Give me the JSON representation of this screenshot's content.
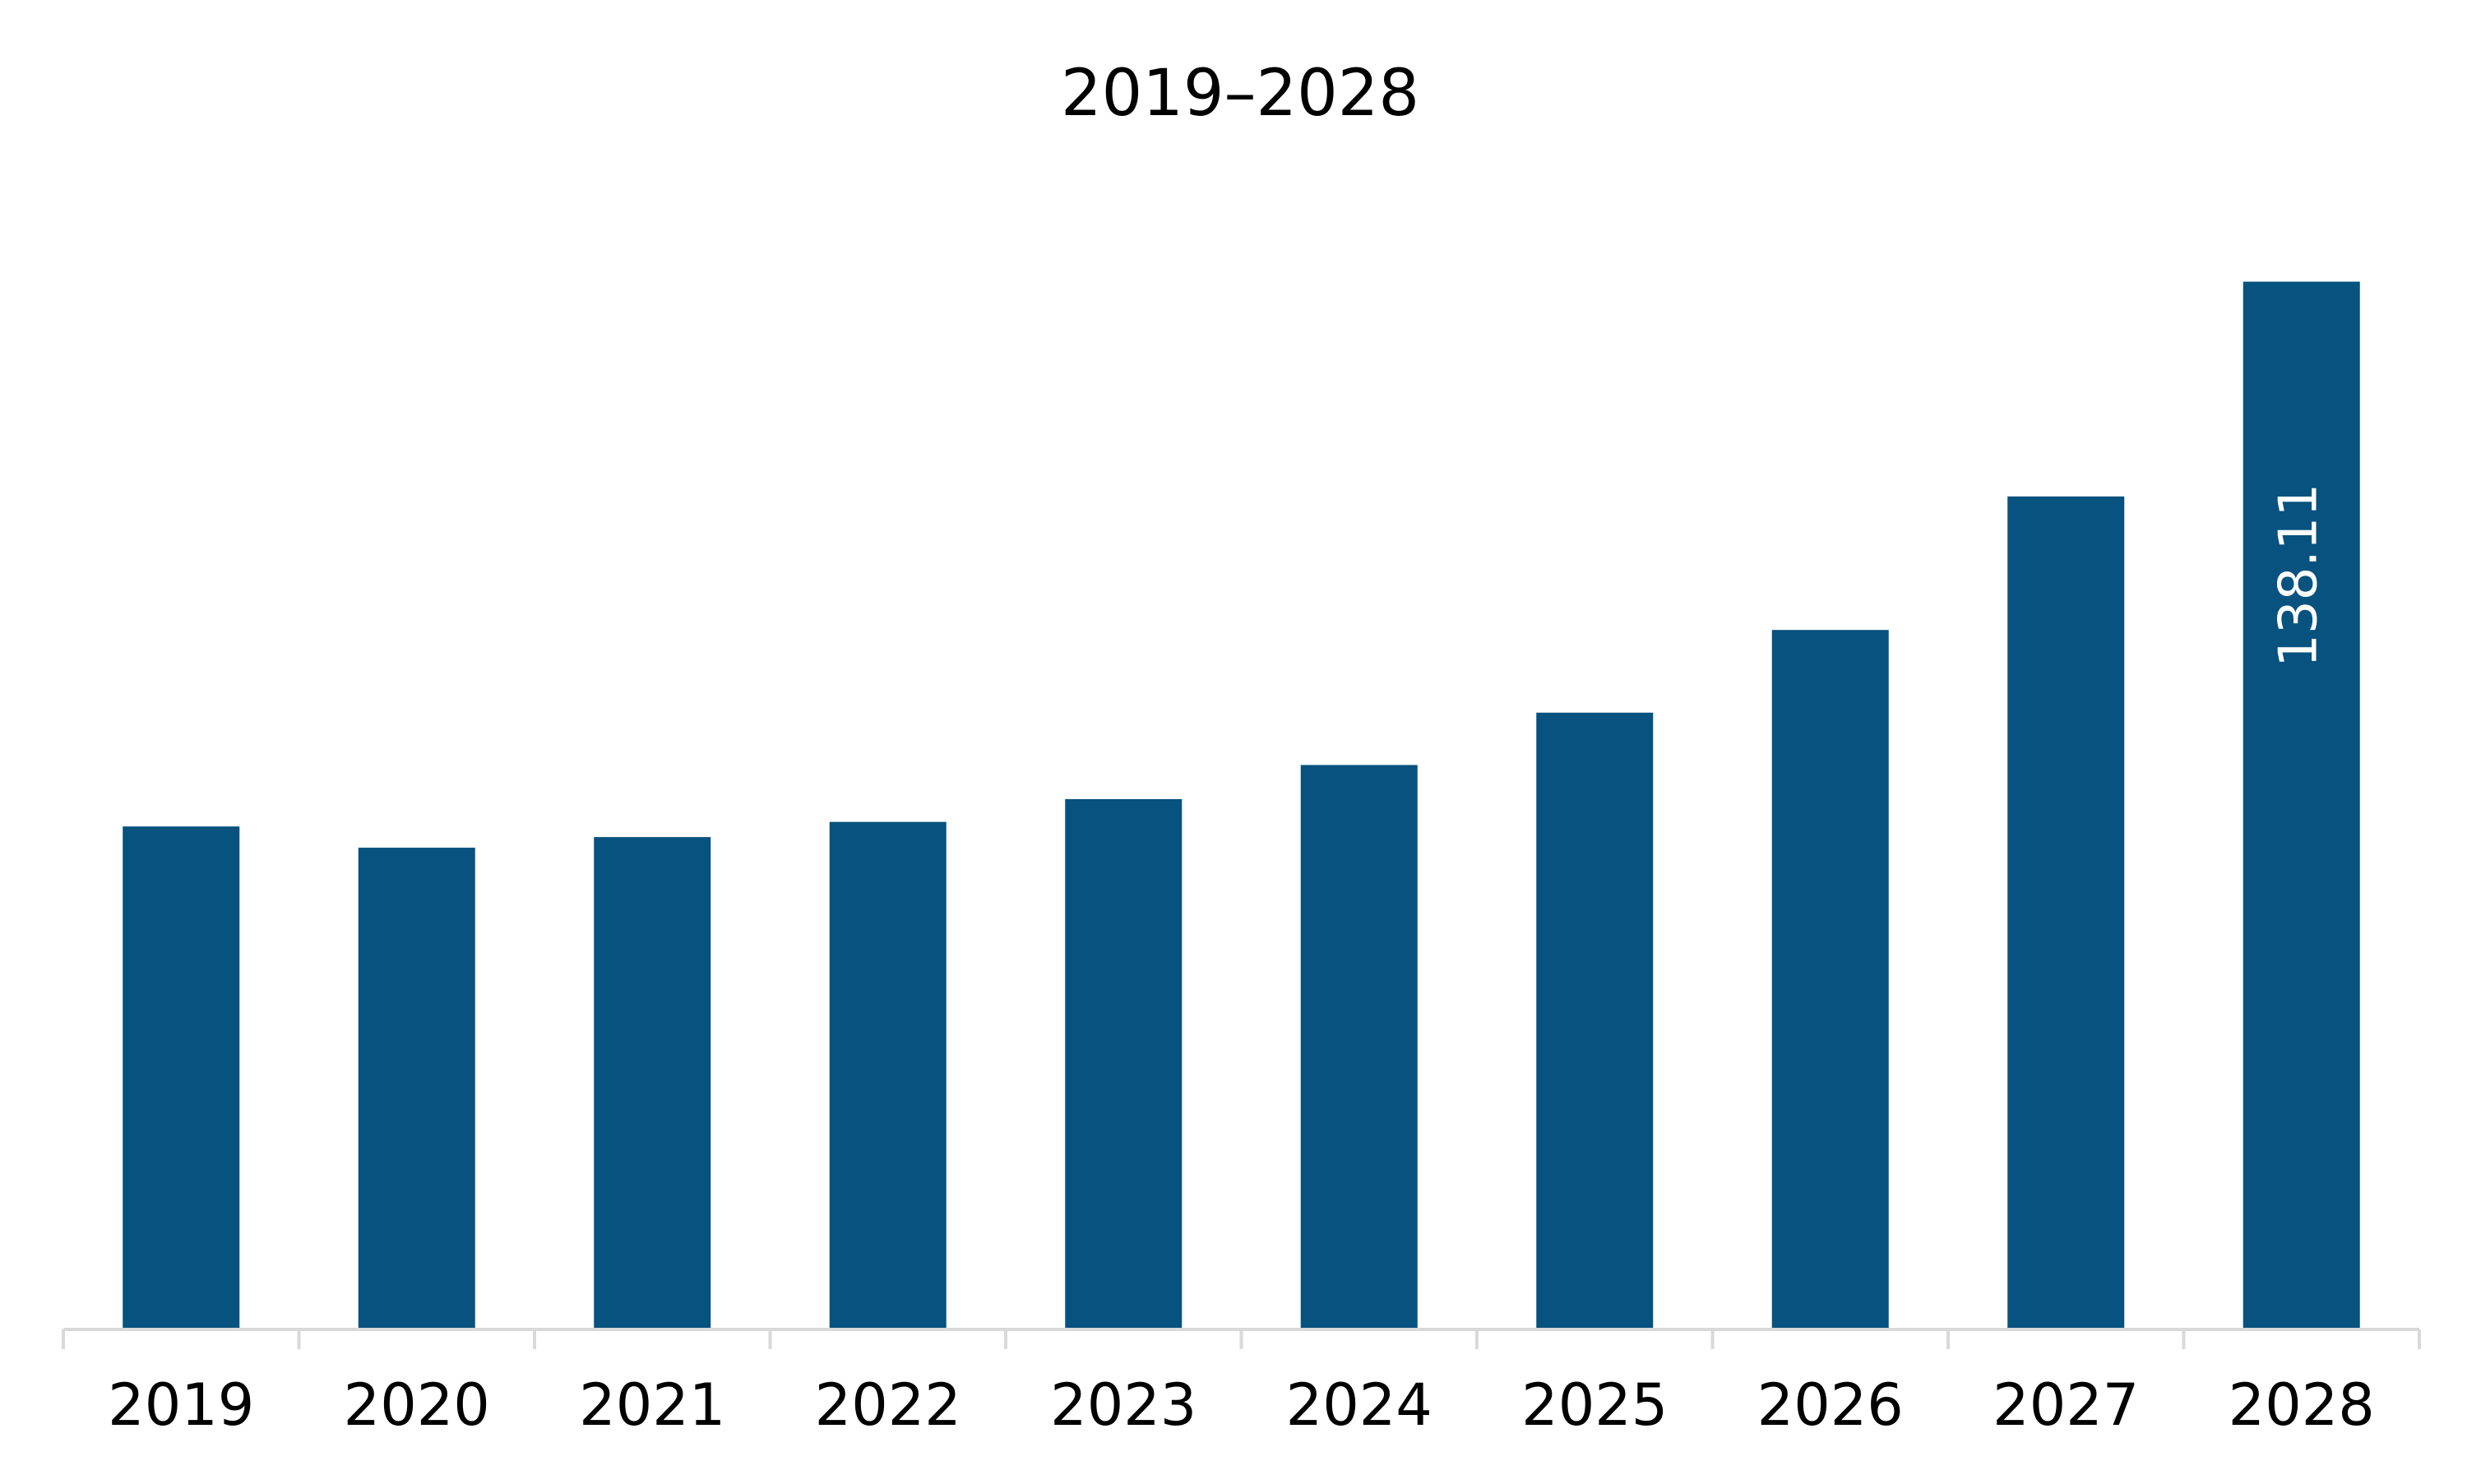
{
  "chart_data": {
    "type": "bar",
    "title": "2019–2028",
    "xlabel": "",
    "ylabel": "",
    "categories": [
      "2019",
      "2020",
      "2021",
      "2022",
      "2023",
      "2024",
      "2025",
      "2026",
      "2027",
      "2028"
    ],
    "values": [
      66.3,
      63.5,
      64.9,
      66.9,
      69.9,
      74.4,
      81.3,
      92.2,
      109.8,
      138.11
    ],
    "data_labels": [
      "",
      "",
      "",
      "",
      "",
      "",
      "",
      "",
      "",
      "138.11"
    ],
    "ylim": [
      0,
      145
    ],
    "grid": false,
    "legend": "none",
    "colors": {
      "bar": "#07527f",
      "axis": "#d9d9d9",
      "text": "#000000",
      "label_text": "#ffffff"
    }
  }
}
